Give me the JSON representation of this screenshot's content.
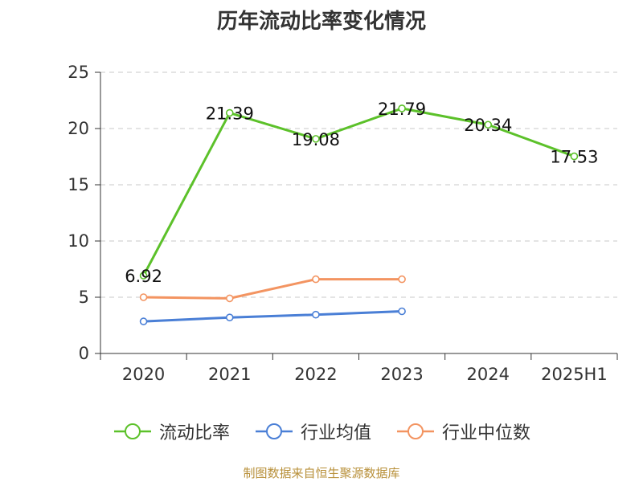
{
  "title": "历年流动比率变化情况",
  "footer": "制图数据来自恒生聚源数据库",
  "chart_data": {
    "type": "line",
    "categories": [
      "2020",
      "2021",
      "2022",
      "2023",
      "2024",
      "2025H1"
    ],
    "ylim": [
      0,
      25
    ],
    "yticks": [
      "0",
      "5",
      "10",
      "15",
      "20",
      "25"
    ],
    "grid": true,
    "legend_position": "bottom",
    "series": [
      {
        "name": "流动比率",
        "color": "#5cc12a",
        "values": [
          6.92,
          21.39,
          19.08,
          21.79,
          20.34,
          17.53
        ],
        "labels": [
          "6.92",
          "21.39",
          "19.08",
          "21.79",
          "20.34",
          "17.53"
        ]
      },
      {
        "name": "行业均值",
        "color": "#4a7fd6",
        "values": [
          2.85,
          3.2,
          3.45,
          3.75,
          null,
          null
        ]
      },
      {
        "name": "行业中位数",
        "color": "#f39461",
        "values": [
          5.0,
          4.9,
          6.6,
          6.6,
          null,
          null
        ]
      }
    ]
  }
}
